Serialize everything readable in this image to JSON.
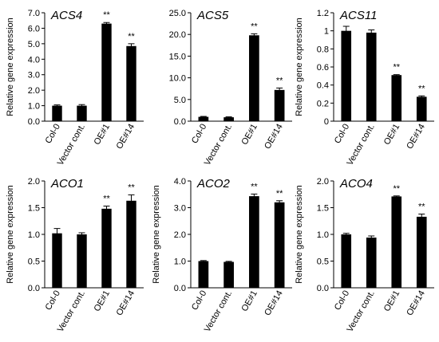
{
  "chart_data": [
    {
      "type": "bar",
      "title": "ACS4",
      "ylabel": "Relative gene expression",
      "categories": [
        "Col-0",
        "Vector cont.",
        "OE#1",
        "OE#14"
      ],
      "values": [
        1.0,
        1.0,
        6.3,
        4.85
      ],
      "errors": [
        0.05,
        0.07,
        0.07,
        0.15
      ],
      "significance": [
        "",
        "",
        "**",
        "**"
      ],
      "ylim": [
        0,
        7
      ],
      "yticks": [
        "0.0",
        "1.0",
        "2.0",
        "3.0",
        "4.0",
        "5.0",
        "6.0",
        "7.0"
      ]
    },
    {
      "type": "bar",
      "title": "ACS5",
      "ylabel": "",
      "categories": [
        "Col-0",
        "Vector cont.",
        "OE#1",
        "OE#14"
      ],
      "values": [
        1.0,
        0.9,
        19.8,
        7.2
      ],
      "errors": [
        0.1,
        0.1,
        0.35,
        0.45
      ],
      "significance": [
        "",
        "",
        "**",
        "**"
      ],
      "ylim": [
        0,
        25
      ],
      "yticks": [
        "0.0",
        "5.0",
        "10.0",
        "15.0",
        "20.0",
        "25.0"
      ]
    },
    {
      "type": "bar",
      "title": "ACS11",
      "ylabel": "Relative gene expression",
      "categories": [
        "Col-0",
        "Vector cont.",
        "OE#1",
        "OE#14"
      ],
      "values": [
        1.0,
        0.98,
        0.51,
        0.27
      ],
      "errors": [
        0.05,
        0.03,
        0.005,
        0.01
      ],
      "significance": [
        "",
        "",
        "**",
        "**"
      ],
      "ylim": [
        0,
        1.2
      ],
      "yticks": [
        "0",
        "0.2",
        "0.4",
        "0.6",
        "0.8",
        "1",
        "1.2"
      ]
    },
    {
      "type": "bar",
      "title": "ACO1",
      "ylabel": "Relative gene expression",
      "categories": [
        "Col-0",
        "Vector cont.",
        "OE#1",
        "OE#14"
      ],
      "values": [
        1.02,
        1.0,
        1.48,
        1.63
      ],
      "errors": [
        0.09,
        0.03,
        0.05,
        0.11
      ],
      "significance": [
        "",
        "",
        "**",
        "**"
      ],
      "ylim": [
        0,
        2.0
      ],
      "yticks": [
        "0.0",
        "0.5",
        "1.0",
        "1.5",
        "2.0"
      ]
    },
    {
      "type": "bar",
      "title": "ACO2",
      "ylabel": "Relative gene expression",
      "categories": [
        "Col-0",
        "Vector cont.",
        "OE#1",
        "OE#14"
      ],
      "values": [
        1.0,
        0.97,
        3.43,
        3.2
      ],
      "errors": [
        0.02,
        0.02,
        0.08,
        0.06
      ],
      "significance": [
        "",
        "",
        "**",
        "**"
      ],
      "ylim": [
        0,
        4.0
      ],
      "yticks": [
        "0.0",
        "1.0",
        "2.0",
        "3.0",
        "4.0"
      ]
    },
    {
      "type": "bar",
      "title": "ACO4",
      "ylabel": "Relative gene expression",
      "categories": [
        "Col-0",
        "Vector cont.",
        "OE#1",
        "OE#14"
      ],
      "values": [
        1.0,
        0.94,
        1.71,
        1.33
      ],
      "errors": [
        0.02,
        0.03,
        0.01,
        0.05
      ],
      "significance": [
        "",
        "",
        "**",
        "**"
      ],
      "ylim": [
        0,
        2.0
      ],
      "yticks": [
        "0.0",
        "0.5",
        "1.0",
        "1.5",
        "2.0"
      ]
    }
  ]
}
